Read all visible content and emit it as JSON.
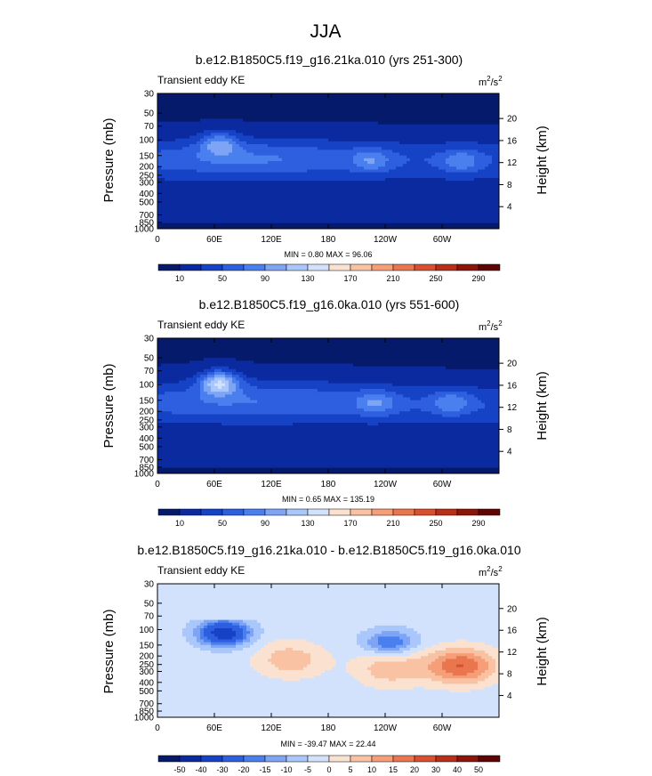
{
  "figure": {
    "title": "JJA",
    "variable_label": "Transient eddy KE",
    "units_base": "m",
    "units_exp1": "2",
    "units_mid": "/s",
    "units_exp2": "2",
    "ylabel": "Pressure (mb)",
    "ylabel_right": "Height (km)"
  },
  "chart_data": [
    {
      "type": "heatmap",
      "title": "b.e12.B1850C5.f19_g16.21ka.010 (yrs 251-300)",
      "subtitle": "Transient eddy KE",
      "units": "m2/s2",
      "xlabel": "",
      "ylabel": "Pressure (mb)",
      "ylabel_right": "Height (km)",
      "x_ticks": [
        "0",
        "60E",
        "120E",
        "180",
        "120W",
        "60W"
      ],
      "x_tick_lon": [
        0,
        60,
        120,
        180,
        240,
        300
      ],
      "xlim": [
        0,
        360
      ],
      "y_ticks": [
        "30",
        "50",
        "70",
        "100",
        "150",
        "200",
        "250",
        "300",
        "400",
        "500",
        "700",
        "850",
        "1000"
      ],
      "y_tick_values": [
        30,
        50,
        70,
        100,
        150,
        200,
        250,
        300,
        400,
        500,
        700,
        850,
        1000
      ],
      "ylim": [
        30,
        1000
      ],
      "height_ticks": [
        "4",
        "8",
        "12",
        "16",
        "20"
      ],
      "height_values": [
        4,
        8,
        12,
        16,
        20
      ],
      "stats": "MIN =   0.80  MAX =  96.06",
      "min": 0.8,
      "max": 96.06,
      "colorbar": {
        "labels": [
          "10",
          "50",
          "90",
          "130",
          "170",
          "210",
          "250",
          "290"
        ],
        "levels": [
          10,
          30,
          50,
          70,
          90,
          110,
          130,
          150,
          170,
          190,
          210,
          230,
          250,
          270,
          290
        ]
      },
      "features": [
        {
          "name": "jet-band-main",
          "level": 50,
          "lon_range": [
            30,
            170
          ],
          "p_range": [
            120,
            200
          ]
        },
        {
          "name": "jet-peak-60E",
          "level": 90,
          "lon": 65,
          "p": 110
        },
        {
          "name": "jet-peak-130W",
          "level": 70,
          "lon": 225,
          "p": 170
        },
        {
          "name": "jet-peak-40W",
          "level": 70,
          "lon": 320,
          "p": 175
        }
      ]
    },
    {
      "type": "heatmap",
      "title": "b.e12.B1850C5.f19_g16.0ka.010 (yrs 551-600)",
      "subtitle": "Transient eddy KE",
      "units": "m2/s2",
      "xlabel": "",
      "ylabel": "Pressure (mb)",
      "ylabel_right": "Height (km)",
      "x_ticks": [
        "0",
        "60E",
        "120E",
        "180",
        "120W",
        "60W"
      ],
      "x_tick_lon": [
        0,
        60,
        120,
        180,
        240,
        300
      ],
      "xlim": [
        0,
        360
      ],
      "y_ticks": [
        "30",
        "50",
        "70",
        "100",
        "150",
        "200",
        "250",
        "300",
        "400",
        "500",
        "700",
        "850",
        "1000"
      ],
      "y_tick_values": [
        30,
        50,
        70,
        100,
        150,
        200,
        250,
        300,
        400,
        500,
        700,
        850,
        1000
      ],
      "ylim": [
        30,
        1000
      ],
      "height_ticks": [
        "4",
        "8",
        "12",
        "16",
        "20"
      ],
      "height_values": [
        4,
        8,
        12,
        16,
        20
      ],
      "stats": "MIN =   0.65  MAX = 135.19",
      "min": 0.65,
      "max": 135.19,
      "colorbar": {
        "labels": [
          "10",
          "50",
          "90",
          "130",
          "170",
          "210",
          "250",
          "290"
        ],
        "levels": [
          10,
          30,
          50,
          70,
          90,
          110,
          130,
          150,
          170,
          190,
          210,
          230,
          250,
          270,
          290
        ]
      },
      "features": [
        {
          "name": "jet-band-main",
          "level": 50,
          "lon_range": [
            20,
            190
          ],
          "p_range": [
            90,
            200
          ]
        },
        {
          "name": "jet-peak-60E",
          "level": 130,
          "lon": 65,
          "p": 95
        },
        {
          "name": "jet-peak-130W",
          "level": 70,
          "lon": 230,
          "p": 160
        },
        {
          "name": "jet-peak-50W",
          "level": 70,
          "lon": 310,
          "p": 160
        }
      ]
    },
    {
      "type": "heatmap",
      "title": "b.e12.B1850C5.f19_g16.21ka.010 - b.e12.B1850C5.f19_g16.0ka.010",
      "subtitle": "Transient eddy KE",
      "units": "m2/s2",
      "xlabel": "",
      "ylabel": "Pressure (mb)",
      "ylabel_right": "Height (km)",
      "x_ticks": [
        "0",
        "60E",
        "120E",
        "180",
        "120W",
        "60W"
      ],
      "x_tick_lon": [
        0,
        60,
        120,
        180,
        240,
        300
      ],
      "xlim": [
        0,
        360
      ],
      "y_ticks": [
        "30",
        "50",
        "70",
        "100",
        "150",
        "200",
        "250",
        "300",
        "400",
        "500",
        "700",
        "850",
        "1000"
      ],
      "y_tick_values": [
        30,
        50,
        70,
        100,
        150,
        200,
        250,
        300,
        400,
        500,
        700,
        850,
        1000
      ],
      "ylim": [
        30,
        1000
      ],
      "height_ticks": [
        "4",
        "8",
        "12",
        "16",
        "20"
      ],
      "height_values": [
        4,
        8,
        12,
        16,
        20
      ],
      "stats": "MIN = -39.47  MAX =  22.44",
      "min": -39.47,
      "max": 22.44,
      "colorbar": {
        "labels": [
          "-50",
          "-40",
          "-30",
          "-20",
          "-15",
          "-10",
          "-5",
          "0",
          "5",
          "10",
          "15",
          "20",
          "30",
          "40",
          "50"
        ],
        "levels": [
          -50,
          -40,
          -30,
          -20,
          -15,
          -10,
          -5,
          0,
          5,
          10,
          15,
          20,
          30,
          40,
          50
        ]
      },
      "features": [
        {
          "name": "negative-60E",
          "level": -30,
          "lon": 70,
          "p": 110
        },
        {
          "name": "positive-120E",
          "level": 10,
          "lon": 140,
          "p": 220
        },
        {
          "name": "positive-120W",
          "level": 10,
          "lon": 245,
          "p": 280
        },
        {
          "name": "positive-50W",
          "level": 20,
          "lon": 320,
          "p": 260
        },
        {
          "name": "negative-120W",
          "level": -15,
          "lon": 245,
          "p": 140
        }
      ]
    }
  ],
  "colors": {
    "seq_palette": [
      "#061a6b",
      "#0b2aa0",
      "#1642c6",
      "#2d5fdf",
      "#4a7fef",
      "#7ea4f6",
      "#a9c7fb",
      "#d2e2fc",
      "#fbe2d0",
      "#f9c2a2",
      "#f59e78",
      "#ea7650",
      "#d8502f",
      "#b82e19",
      "#8d1408",
      "#5f0303"
    ],
    "diff_palette": [
      "#061a6b",
      "#0b2aa0",
      "#1642c6",
      "#2d5fdf",
      "#4a7fef",
      "#7ea4f6",
      "#a9c7fb",
      "#d2e2fc",
      "#fbe2d0",
      "#f9c2a2",
      "#f59e78",
      "#ea7650",
      "#d8502f",
      "#b82e19",
      "#8d1408",
      "#5f0303"
    ]
  }
}
